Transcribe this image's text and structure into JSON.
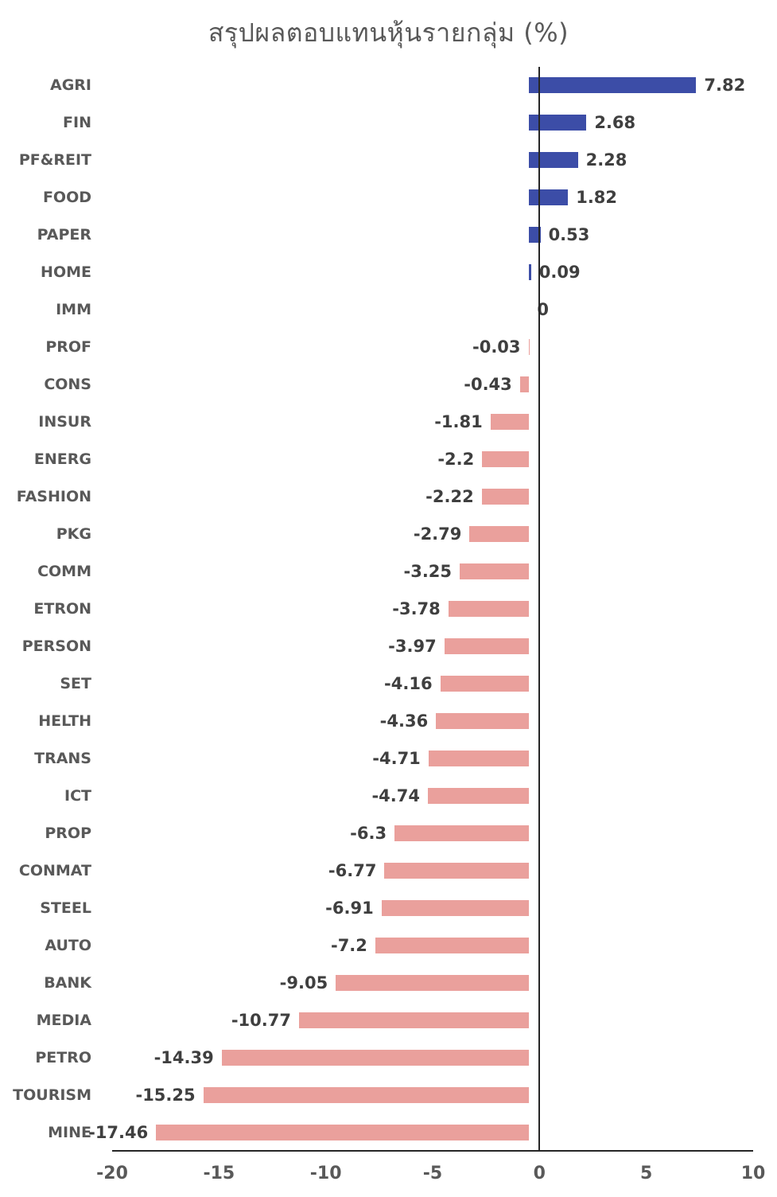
{
  "title": "สรุปผลตอบแทนหุ้นรายกลุ่ม (%)",
  "chart_data": {
    "type": "bar",
    "orientation": "horizontal",
    "title": "สรุปผลตอบแทนหุ้นรายกลุ่ม (%)",
    "xlabel": "",
    "ylabel": "",
    "xlim": [
      -20,
      10
    ],
    "x_ticks": [
      "-20",
      "-15",
      "-10",
      "-5",
      "0",
      "5",
      "10"
    ],
    "grid": false,
    "legend": false,
    "categories": [
      "AGRI",
      "FIN",
      "PF&REIT",
      "FOOD",
      "PAPER",
      "HOME",
      "IMM",
      "PROF",
      "CONS",
      "INSUR",
      "ENERG",
      "FASHION",
      "PKG",
      "COMM",
      "ETRON",
      "PERSON",
      "SET",
      "HELTH",
      "TRANS",
      "ICT",
      "PROP",
      "CONMAT",
      "STEEL",
      "AUTO",
      "BANK",
      "MEDIA",
      "PETRO",
      "TOURISM",
      "MINE"
    ],
    "values": [
      7.82,
      2.68,
      2.28,
      1.82,
      0.53,
      0.09,
      0,
      -0.03,
      -0.43,
      -1.81,
      -2.2,
      -2.22,
      -2.79,
      -3.25,
      -3.78,
      -3.97,
      -4.16,
      -4.36,
      -4.71,
      -4.74,
      -6.3,
      -6.77,
      -6.91,
      -7.2,
      -9.05,
      -10.77,
      -14.39,
      -15.25,
      -17.46
    ],
    "value_labels": [
      "7.82",
      "2.68",
      "2.28",
      "1.82",
      "0.53",
      "0.09",
      "0",
      "-0.03",
      "-0.43",
      "-1.81",
      "-2.2",
      "-2.22",
      "-2.79",
      "-3.25",
      "-3.78",
      "-3.97",
      "-4.16",
      "-4.36",
      "-4.71",
      "-4.74",
      "-6.3",
      "-6.77",
      "-6.91",
      "-7.2",
      "-9.05",
      "-10.77",
      "-14.39",
      "-15.25",
      "-17.46"
    ],
    "colors": {
      "positive_bar": "#3C4DA7",
      "negative_bar": "#EAA09C",
      "value_label": "#3F3F3F",
      "category_label": "#595959",
      "tick_label": "#595959",
      "axis_line": "#262626",
      "title": "#595959",
      "background": "#FFFFFF"
    }
  }
}
